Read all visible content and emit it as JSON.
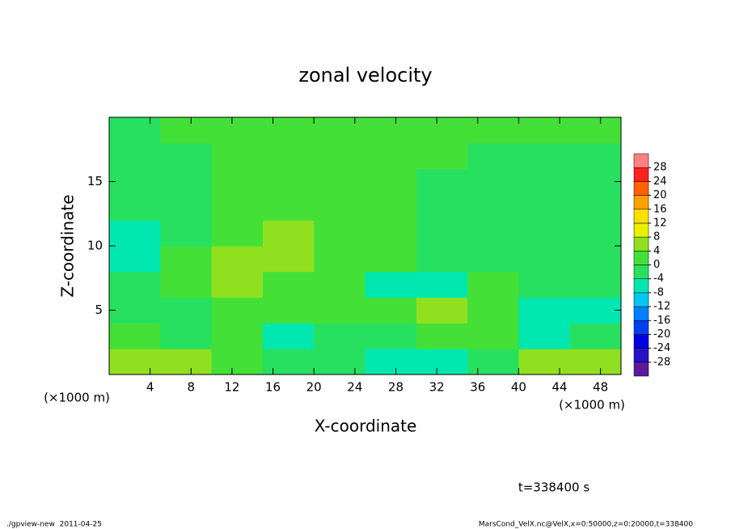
{
  "chart_data": {
    "type": "heatmap",
    "title": "zonal velocity",
    "x_label": "X-coordinate",
    "y_label": "Z-coordinate",
    "x_unit": "(×1000 m)",
    "time_label": "t=338400 s",
    "footer_left": "./gpview-new  2011-04-25",
    "footer_right": "MarsCond_VelX.nc@VelX,x=0:50000,z=0:20000,t=338400",
    "xlim": [
      0,
      50
    ],
    "xticks": [
      4,
      8,
      12,
      16,
      20,
      24,
      28,
      32,
      36,
      40,
      44,
      48
    ],
    "ylim": [
      0,
      20
    ],
    "yticks": [
      5,
      10,
      15
    ],
    "x": [
      2.5,
      7.5,
      12.5,
      17.5,
      22.5,
      27.5,
      32.5,
      37.5,
      42.5,
      47.5
    ],
    "z": [
      1,
      3,
      5,
      7,
      9,
      11,
      13,
      15,
      17,
      19
    ],
    "values": [
      [
        7,
        4,
        0,
        -2,
        -4,
        -7,
        -6,
        -2,
        4,
        7
      ],
      [
        0,
        -2,
        0,
        -6,
        -3,
        -3,
        2,
        0,
        -5,
        -2
      ],
      [
        -2,
        -1,
        2,
        0,
        1,
        3,
        6,
        2,
        -5,
        -5
      ],
      [
        -3,
        0,
        6,
        2,
        0,
        -5,
        -5,
        0,
        -2,
        -3
      ],
      [
        -5,
        0,
        4,
        5,
        1,
        0,
        -2,
        -1,
        -3,
        -4
      ],
      [
        -6,
        -2,
        2,
        4,
        2,
        0,
        -1,
        -2,
        -3,
        -4
      ],
      [
        -4,
        -1,
        1,
        3,
        2,
        0,
        -1,
        -2,
        -2,
        -3
      ],
      [
        -3,
        -1,
        0,
        2,
        1,
        0,
        -1,
        -1,
        -2,
        -2
      ],
      [
        -2,
        -1,
        0,
        1,
        1,
        0,
        0,
        -1,
        -1,
        -1
      ],
      [
        -1,
        0,
        0,
        0,
        0,
        0,
        0,
        0,
        0,
        0
      ]
    ],
    "colorbar": {
      "levels": [
        -28,
        -24,
        -20,
        -16,
        -12,
        -8,
        -4,
        0,
        4,
        8,
        12,
        16,
        20,
        24,
        28
      ],
      "colors": [
        "#5c1a9c",
        "#2a10c8",
        "#0000e0",
        "#0040f0",
        "#0080ff",
        "#00c8f0",
        "#00e8b0",
        "#28e060",
        "#44e038",
        "#90e020",
        "#e8f000",
        "#ffe000",
        "#ffa000",
        "#ff6000",
        "#ff2020",
        "#ff8080"
      ]
    }
  }
}
